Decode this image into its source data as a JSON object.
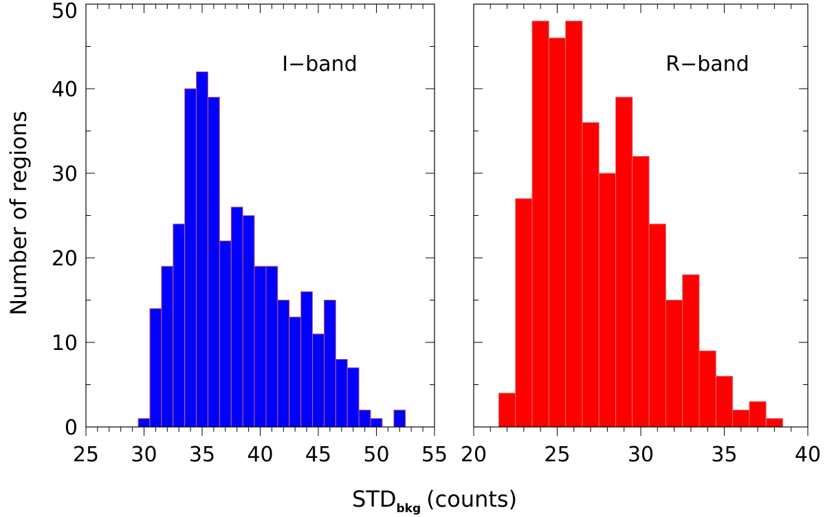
{
  "figure": {
    "ylabel": "Number of regions",
    "xlabel_main": "STD",
    "xlabel_sub": "bkg",
    "xlabel_unit": "(counts)"
  },
  "chart_data": [
    {
      "type": "bar",
      "title": "I−band",
      "color": "#0000ff",
      "edge_color": "#c86464",
      "bin_width": 1.0,
      "bin_start": 29.5,
      "values": [
        1,
        14,
        19,
        24,
        40,
        42,
        39,
        22,
        26,
        25,
        19,
        19,
        15,
        13,
        16,
        11,
        15,
        8,
        7,
        2,
        1,
        0,
        2
      ],
      "xlim": [
        25,
        55
      ],
      "ylim": [
        0,
        50
      ],
      "xticks": [
        25,
        30,
        35,
        40,
        45,
        50,
        55
      ],
      "yticks": [
        0,
        10,
        20,
        30,
        40,
        50
      ],
      "x_minor_step": 1,
      "y_minor_step": 5,
      "grid": false
    },
    {
      "type": "bar",
      "title": "R−band",
      "color": "#ff0000",
      "edge_color": "#e07070",
      "bin_width": 1.0,
      "bin_start": 21.5,
      "values": [
        4,
        27,
        48,
        46,
        48,
        36,
        30,
        39,
        32,
        24,
        15,
        18,
        9,
        6,
        2,
        3,
        1
      ],
      "xlim": [
        20,
        40
      ],
      "ylim": [
        0,
        50
      ],
      "xticks": [
        20,
        25,
        30,
        35,
        40
      ],
      "yticks": [
        0,
        10,
        20,
        30,
        40,
        50
      ],
      "x_minor_step": 1,
      "y_minor_step": 5,
      "grid": false
    }
  ]
}
